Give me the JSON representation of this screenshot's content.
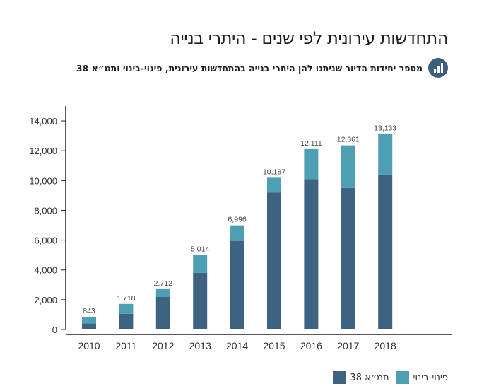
{
  "header": {
    "title": "התחדשות עירונית לפי שנים - היתרי בנייה",
    "subtitle": "מספר יחידות הדיור שניתנו להן היתרי בנייה בהתחדשות עירונית, פינוי-בינוי ותמ״א 38",
    "subtitle_icon": "bar-chart-icon"
  },
  "colors": {
    "tama38": "#3d6381",
    "pinui_binui": "#4e9fb3",
    "axis": "#222222"
  },
  "chart_data": {
    "type": "bar",
    "stacked": true,
    "title": "התחדשות עירונית לפי שנים - היתרי בנייה",
    "categories": [
      "2010",
      "2011",
      "2012",
      "2013",
      "2014",
      "2015",
      "2016",
      "2017",
      "2018"
    ],
    "series": [
      {
        "name": "תמ״א 38",
        "values": [
          400,
          1050,
          2200,
          3800,
          5950,
          9200,
          10100,
          9500,
          10400
        ]
      },
      {
        "name": "פינוי-בינוי",
        "values": [
          443,
          668,
          512,
          1214,
          1046,
          987,
          2011,
          2861,
          2733
        ]
      }
    ],
    "totals": [
      843,
      1718,
      2712,
      5014,
      6996,
      10187,
      12111,
      12361,
      13133
    ],
    "total_labels": [
      "843",
      "1,718",
      "2,712",
      "5,014",
      "6,996",
      "10,187",
      "12,111",
      "12,361",
      "13,133"
    ],
    "y_ticks": [
      "0",
      "2,000",
      "4,000",
      "6,000",
      "8,000",
      "10,000",
      "12,000",
      "14,000"
    ],
    "ylim": [
      0,
      15000
    ],
    "xlabel": "",
    "ylabel": "",
    "grid": false,
    "legend_position": "bottom-right"
  },
  "legend": [
    {
      "label": "פינוי-בינוי",
      "key": "pinui_binui"
    },
    {
      "label": "תמ״א 38",
      "key": "tama38"
    }
  ]
}
